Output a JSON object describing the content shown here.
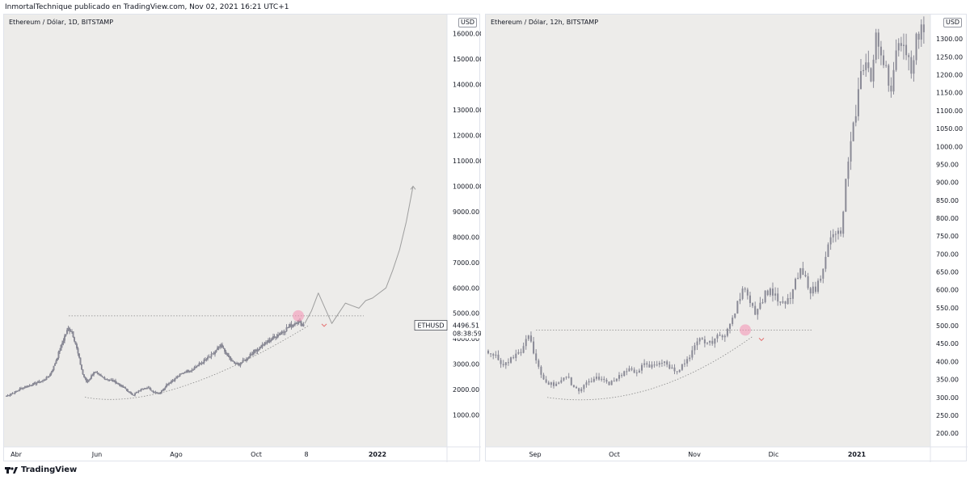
{
  "header": {
    "text": "InmortalTechnique publicado en TradingView.com, Nov 02, 2021 16:21 UTC+1"
  },
  "footer": {
    "logo_text": "TradingView"
  },
  "colors": {
    "candles": "#8a8a96",
    "background": "#edecea",
    "pink_marker": "#f48fb1",
    "down_arrow": "#e57373",
    "projection": "#9e9e9e",
    "guide": "#888888"
  },
  "chart_data": [
    {
      "type": "candlestick",
      "title": "Ethereum / Dólar, 1D, BITSTAMP",
      "currency": "USD",
      "y_ticks": [
        "16000.00",
        "15000.00",
        "14000.00",
        "13000.00",
        "12000.00",
        "11000.00",
        "10000.00",
        "9000.00",
        "8000.00",
        "7000.00",
        "6000.00",
        "5000.00",
        "4000.00",
        "3000.00",
        "2000.00",
        "1000.00"
      ],
      "ylim": [
        0,
        16500
      ],
      "x_ticks": [
        "Abr",
        "Jun",
        "Ago",
        "Oct",
        "8",
        "2022"
      ],
      "price_label": {
        "symbol": "ETHUSD",
        "value": "4496.51",
        "countdown": "08:38:59"
      },
      "resistance_level": 4900,
      "series_close": [
        1750,
        1820,
        1880,
        1950,
        2050,
        2100,
        2150,
        2200,
        2250,
        2300,
        2350,
        2450,
        2600,
        2900,
        3300,
        3700,
        4100,
        4400,
        4300,
        3800,
        3200,
        2600,
        2300,
        2450,
        2700,
        2600,
        2500,
        2450,
        2400,
        2350,
        2300,
        2200,
        2100,
        2000,
        1850,
        1800,
        1900,
        2000,
        2100,
        2050,
        1950,
        1900,
        1850,
        2000,
        2200,
        2300,
        2400,
        2500,
        2600,
        2700,
        2750,
        2800,
        2900,
        3000,
        3100,
        3200,
        3300,
        3400,
        3600,
        3700,
        3500,
        3300,
        3100,
        3000,
        3000,
        3100,
        3200,
        3400,
        3500,
        3600,
        3700,
        3800,
        3900,
        4000,
        4100,
        4200,
        4300,
        4400,
        4500,
        4600,
        4700,
        4600,
        4496
      ],
      "projection_path": [
        4600,
        5100,
        5800,
        5200,
        4600,
        5000,
        5400,
        5300,
        5200,
        5500,
        5600,
        5800,
        6000,
        6700,
        7500,
        8600,
        10000
      ],
      "arc": {
        "from": 1700,
        "bottom": 1550,
        "to": 4500
      }
    },
    {
      "type": "candlestick",
      "title": "Ethereum / Dólar, 12h, BITSTAMP",
      "currency": "USD",
      "y_ticks": [
        "1300.00",
        "1250.00",
        "1200.00",
        "1150.00",
        "1100.00",
        "1050.00",
        "1000.00",
        "950.00",
        "900.00",
        "850.00",
        "800.00",
        "750.00",
        "700.00",
        "650.00",
        "600.00",
        "550.00",
        "500.00",
        "450.00",
        "400.00",
        "350.00",
        "300.00",
        "250.00",
        "200.00"
      ],
      "ylim": [
        180,
        1350
      ],
      "x_ticks": [
        "Sep",
        "Oct",
        "Nov",
        "Dic",
        "2021"
      ],
      "resistance_level": 488,
      "series_close": [
        430,
        420,
        405,
        390,
        400,
        410,
        420,
        440,
        480,
        420,
        380,
        350,
        340,
        335,
        345,
        355,
        350,
        330,
        320,
        335,
        345,
        350,
        355,
        345,
        340,
        350,
        360,
        370,
        375,
        370,
        380,
        390,
        385,
        390,
        400,
        395,
        385,
        375,
        380,
        395,
        410,
        440,
        460,
        455,
        450,
        465,
        470,
        480,
        500,
        540,
        580,
        610,
        570,
        540,
        560,
        590,
        600,
        580,
        560,
        560,
        580,
        620,
        650,
        630,
        600,
        600,
        640,
        700,
        740,
        760,
        750,
        900,
        1000,
        1100,
        1200,
        1250,
        1180,
        1300,
        1260,
        1230,
        1150,
        1250,
        1300,
        1270,
        1220,
        1300,
        1320,
        1350
      ],
      "arc": {
        "from": 300,
        "bottom": 290,
        "to": 470
      }
    }
  ]
}
